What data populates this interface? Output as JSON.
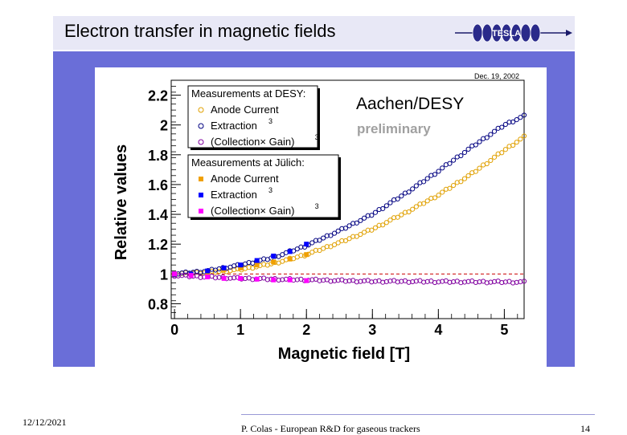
{
  "slide": {
    "title": "Electron transfer in magnetic fields",
    "logo_text": "TESLA",
    "footer_date": "12/12/2021",
    "footer_center": "P. Colas - European R&D for gaseous trackers",
    "footer_page": "14"
  },
  "colors": {
    "frame": "#6a6ed8",
    "title_bar": "#e8e8f6",
    "desy_anode": "#e0a000",
    "desy_extraction": "#000080",
    "desy_collection": "#8000a0",
    "julich_anode": "#f0a000",
    "julich_extraction": "#0000ff",
    "julich_collection": "#ff00ff",
    "reference_line": "#cc0000"
  },
  "chart_data": {
    "type": "scatter",
    "date_label": "Dec. 19, 2002",
    "annotation_main": "Aachen/DESY",
    "annotation_sub": "preliminary",
    "xlabel": "Magnetic field [T]",
    "ylabel": "Relative values",
    "xlim": [
      -0.05,
      5.3
    ],
    "ylim": [
      0.7,
      2.3
    ],
    "x_ticks": [
      "0",
      "1",
      "2",
      "3",
      "4",
      "5"
    ],
    "y_ticks": [
      "0.8",
      "1",
      "1.2",
      "1.4",
      "1.6",
      "1.8",
      "2",
      "2.2"
    ],
    "reference_line_y": 1.0,
    "legend_desy": {
      "heading": "Measurements at DESY:",
      "entries": [
        "Anode Current",
        "Extraction",
        "(Collection× Gain)"
      ],
      "superscripts": [
        "",
        "3",
        "3"
      ]
    },
    "legend_julich": {
      "heading": "Measurements at Jülich:",
      "entries": [
        "Anode Current",
        "Extraction",
        "(Collection× Gain)"
      ],
      "superscripts": [
        "",
        "3",
        "3"
      ]
    },
    "series": [
      {
        "name": "DESY Anode Current",
        "marker": "open-circle",
        "color": "#e0a000",
        "x": [
          0,
          0.5,
          1.0,
          1.5,
          2.0,
          2.5,
          3.0,
          3.5,
          4.0,
          4.5,
          5.0,
          5.3
        ],
        "y": [
          1.0,
          1.01,
          1.03,
          1.07,
          1.13,
          1.21,
          1.3,
          1.41,
          1.53,
          1.67,
          1.83,
          1.92
        ]
      },
      {
        "name": "DESY Extraction",
        "marker": "open-circle",
        "color": "#000080",
        "x": [
          0,
          0.5,
          1.0,
          1.5,
          2.0,
          2.5,
          3.0,
          3.5,
          4.0,
          4.5,
          5.0,
          5.3
        ],
        "y": [
          1.0,
          1.02,
          1.06,
          1.11,
          1.19,
          1.29,
          1.4,
          1.54,
          1.69,
          1.85,
          2.0,
          2.06
        ]
      },
      {
        "name": "DESY (Collection× Gain)",
        "marker": "open-circle",
        "color": "#8000a0",
        "x": [
          0,
          0.5,
          1.0,
          1.5,
          2.0,
          2.5,
          3.0,
          3.5,
          4.0,
          4.5,
          5.0,
          5.3
        ],
        "y": [
          0.99,
          0.98,
          0.97,
          0.965,
          0.96,
          0.955,
          0.95,
          0.95,
          0.948,
          0.947,
          0.946,
          0.945
        ]
      },
      {
        "name": "Jülich Anode Current",
        "marker": "square",
        "color": "#f0a000",
        "x": [
          0,
          0.25,
          0.5,
          0.75,
          1.0,
          1.25,
          1.5,
          1.75,
          2.0
        ],
        "y": [
          1.0,
          1.0,
          1.01,
          1.03,
          1.04,
          1.06,
          1.08,
          1.1,
          1.13
        ]
      },
      {
        "name": "Jülich Extraction",
        "marker": "square",
        "color": "#0000ff",
        "x": [
          0,
          0.25,
          0.5,
          0.75,
          1.0,
          1.25,
          1.5,
          1.75,
          2.0
        ],
        "y": [
          1.0,
          1.0,
          1.02,
          1.04,
          1.06,
          1.09,
          1.12,
          1.15,
          1.2
        ]
      },
      {
        "name": "Jülich (Collection× Gain)",
        "marker": "square",
        "color": "#ff00ff",
        "x": [
          0,
          0.25,
          0.5,
          0.75,
          1.0,
          1.25,
          1.5,
          1.75,
          2.0
        ],
        "y": [
          1.0,
          0.99,
          0.98,
          0.97,
          0.97,
          0.965,
          0.96,
          0.96,
          0.955
        ]
      }
    ]
  }
}
